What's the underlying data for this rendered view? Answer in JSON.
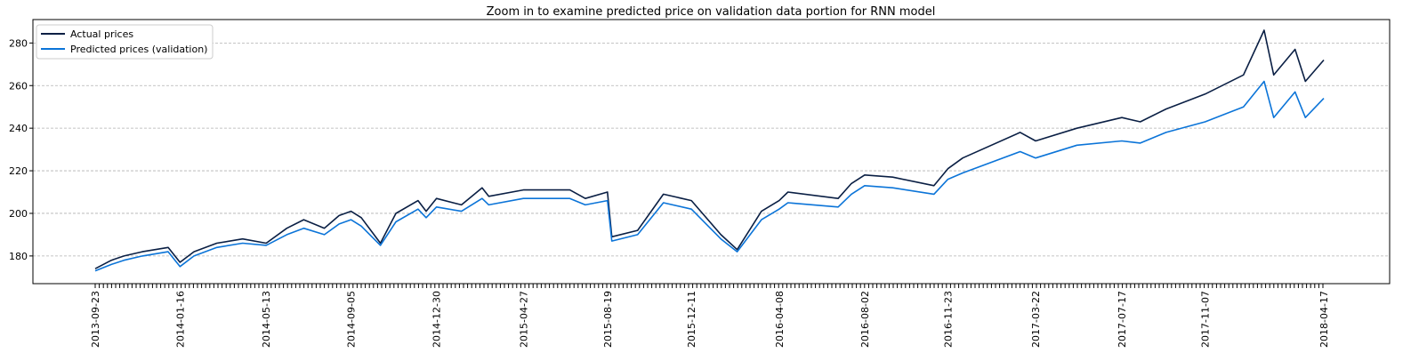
{
  "chart_data": {
    "type": "line",
    "title": "Zoom in to examine predicted price on validation data portion for RNN model",
    "xlabel": "",
    "ylabel": "",
    "ylim": [
      167,
      291
    ],
    "yticks": [
      180,
      200,
      220,
      240,
      260,
      280
    ],
    "xticks": [
      "2013-09-23",
      "2014-01-16",
      "2014-05-13",
      "2014-09-05",
      "2014-12-30",
      "2015-04-27",
      "2015-08-19",
      "2015-12-11",
      "2016-04-08",
      "2016-08-02",
      "2016-11-23",
      "2017-03-22",
      "2017-07-17",
      "2017-11-07",
      "2018-04-17"
    ],
    "grid": "horizontal dashed",
    "legend": "top-left",
    "series": [
      {
        "name": "Actual prices",
        "color": "#0a1f44",
        "x": [
          "2013-09-23",
          "2013-10-15",
          "2013-11-01",
          "2013-11-26",
          "2013-12-31",
          "2014-01-16",
          "2014-02-04",
          "2014-03-07",
          "2014-04-11",
          "2014-05-13",
          "2014-06-10",
          "2014-07-03",
          "2014-07-31",
          "2014-08-20",
          "2014-09-05",
          "2014-09-19",
          "2014-10-15",
          "2014-11-05",
          "2014-12-05",
          "2014-12-16",
          "2014-12-30",
          "2015-02-02",
          "2015-03-02",
          "2015-03-11",
          "2015-04-27",
          "2015-05-20",
          "2015-06-29",
          "2015-07-20",
          "2015-08-19",
          "2015-08-25",
          "2015-09-29",
          "2015-11-03",
          "2015-12-11",
          "2016-01-20",
          "2016-02-11",
          "2016-03-15",
          "2016-04-08",
          "2016-04-20",
          "2016-06-27",
          "2016-07-15",
          "2016-08-02",
          "2016-09-09",
          "2016-11-04",
          "2016-11-23",
          "2016-12-13",
          "2017-03-01",
          "2017-03-22",
          "2017-05-17",
          "2017-07-17",
          "2017-08-11",
          "2017-09-15",
          "2017-11-07",
          "2017-12-29",
          "2018-01-26",
          "2018-02-08",
          "2018-03-09",
          "2018-03-23",
          "2018-04-17"
        ],
        "values": [
          174,
          178,
          180,
          182,
          184,
          177,
          182,
          186,
          188,
          186,
          193,
          197,
          193,
          199,
          201,
          198,
          186,
          200,
          206,
          201,
          207,
          204,
          212,
          208,
          211,
          211,
          211,
          207,
          210,
          189,
          192,
          209,
          206,
          190,
          183,
          201,
          206,
          210,
          207,
          214,
          218,
          217,
          213,
          221,
          226,
          238,
          234,
          240,
          245,
          243,
          249,
          256,
          265,
          286,
          265,
          277,
          262,
          272
        ]
      },
      {
        "name": "Predicted prices (validation)",
        "color": "#0b74d8",
        "x": [
          "2013-09-23",
          "2013-10-15",
          "2013-11-01",
          "2013-11-26",
          "2013-12-31",
          "2014-01-16",
          "2014-02-04",
          "2014-03-07",
          "2014-04-11",
          "2014-05-13",
          "2014-06-10",
          "2014-07-03",
          "2014-07-31",
          "2014-08-20",
          "2014-09-05",
          "2014-09-19",
          "2014-10-15",
          "2014-11-05",
          "2014-12-05",
          "2014-12-16",
          "2014-12-30",
          "2015-02-02",
          "2015-03-02",
          "2015-03-11",
          "2015-04-27",
          "2015-05-20",
          "2015-06-29",
          "2015-07-20",
          "2015-08-19",
          "2015-08-25",
          "2015-09-29",
          "2015-11-03",
          "2015-12-11",
          "2016-01-20",
          "2016-02-11",
          "2016-03-15",
          "2016-04-08",
          "2016-04-20",
          "2016-06-27",
          "2016-07-15",
          "2016-08-02",
          "2016-09-09",
          "2016-11-04",
          "2016-11-23",
          "2016-12-13",
          "2017-03-01",
          "2017-03-22",
          "2017-05-17",
          "2017-07-17",
          "2017-08-11",
          "2017-09-15",
          "2017-11-07",
          "2017-12-29",
          "2018-01-26",
          "2018-02-08",
          "2018-03-09",
          "2018-03-23",
          "2018-04-17"
        ],
        "values": [
          173,
          176,
          178,
          180,
          182,
          175,
          180,
          184,
          186,
          185,
          190,
          193,
          190,
          195,
          197,
          194,
          185,
          196,
          202,
          198,
          203,
          201,
          207,
          204,
          207,
          207,
          207,
          204,
          206,
          187,
          190,
          205,
          202,
          188,
          182,
          197,
          202,
          205,
          203,
          209,
          213,
          212,
          209,
          216,
          219,
          229,
          226,
          232,
          234,
          233,
          238,
          243,
          250,
          262,
          245,
          257,
          245,
          254
        ]
      }
    ]
  }
}
